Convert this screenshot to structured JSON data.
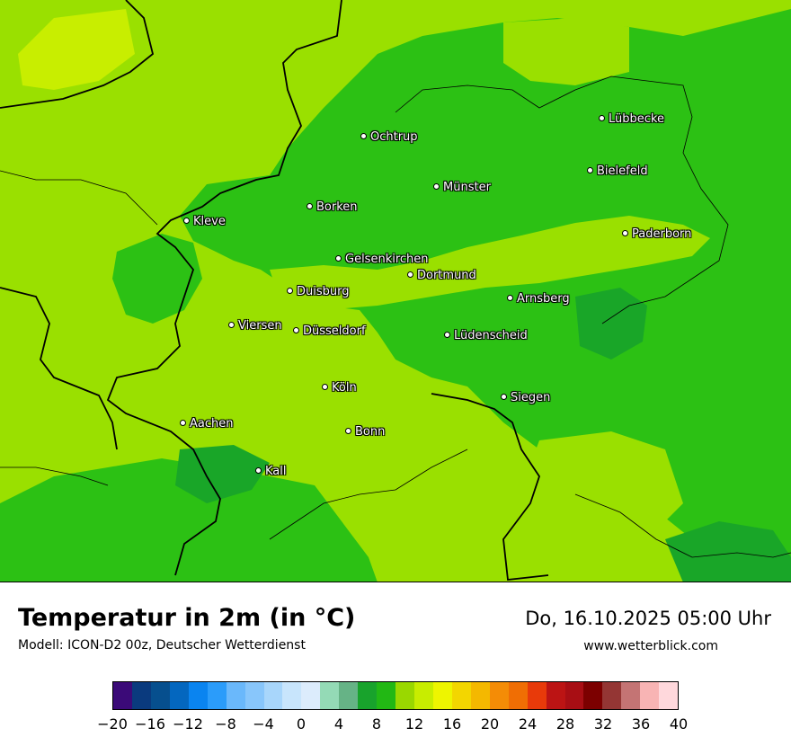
{
  "map": {
    "colors": {
      "light_green": "#9ae000",
      "mid_green": "#2cc114",
      "dark_green": "#19a628",
      "yellow_green": "#c8ee00",
      "border": "#000000"
    },
    "cities": [
      {
        "name": "Lübbecke"
      },
      {
        "name": "Ochtrup"
      },
      {
        "name": "Bielefeld"
      },
      {
        "name": "Münster"
      },
      {
        "name": "Borken"
      },
      {
        "name": "Kleve"
      },
      {
        "name": "Paderborn"
      },
      {
        "name": "Gelsenkirchen"
      },
      {
        "name": "Dortmund"
      },
      {
        "name": "Duisburg"
      },
      {
        "name": "Arnsberg"
      },
      {
        "name": "Viersen"
      },
      {
        "name": "Düsseldorf"
      },
      {
        "name": "Lüdenscheid"
      },
      {
        "name": "Köln"
      },
      {
        "name": "Siegen"
      },
      {
        "name": "Aachen"
      },
      {
        "name": "Bonn"
      },
      {
        "name": "Kall"
      }
    ]
  },
  "header": {
    "title": "Temperatur in 2m (in °C)",
    "subtitle": "Modell: ICON-D2 00z, Deutscher Wetterdienst",
    "datetime": "Do, 16.10.2025 05:00 Uhr",
    "website": "www.wetterblick.com"
  },
  "legend": {
    "colors": [
      "#3b0a78",
      "#0a3a7e",
      "#064f8e",
      "#0467bf",
      "#0a84f0",
      "#2b9cfa",
      "#6ab8fb",
      "#88c6fb",
      "#a8d6fb",
      "#c8e5fc",
      "#dcecfc",
      "#94dab6",
      "#66b386",
      "#18a32c",
      "#22b814",
      "#9ad800",
      "#c8ed00",
      "#eef500",
      "#f3d600",
      "#f4b800",
      "#f48c06",
      "#f06e04",
      "#e83a0a",
      "#bc1414",
      "#a80e14",
      "#7c0000",
      "#943634",
      "#c47474",
      "#f8b4b4",
      "#ffd8dc"
    ],
    "ticks": [
      "−20",
      "−16",
      "−12",
      "−8",
      "−4",
      "0",
      "4",
      "8",
      "12",
      "16",
      "20",
      "24",
      "28",
      "32",
      "36",
      "40"
    ],
    "tick_values": [
      -20,
      -16,
      -12,
      -8,
      -4,
      0,
      4,
      8,
      12,
      16,
      20,
      24,
      28,
      32,
      36,
      40
    ],
    "min": -20,
    "max": 40
  }
}
